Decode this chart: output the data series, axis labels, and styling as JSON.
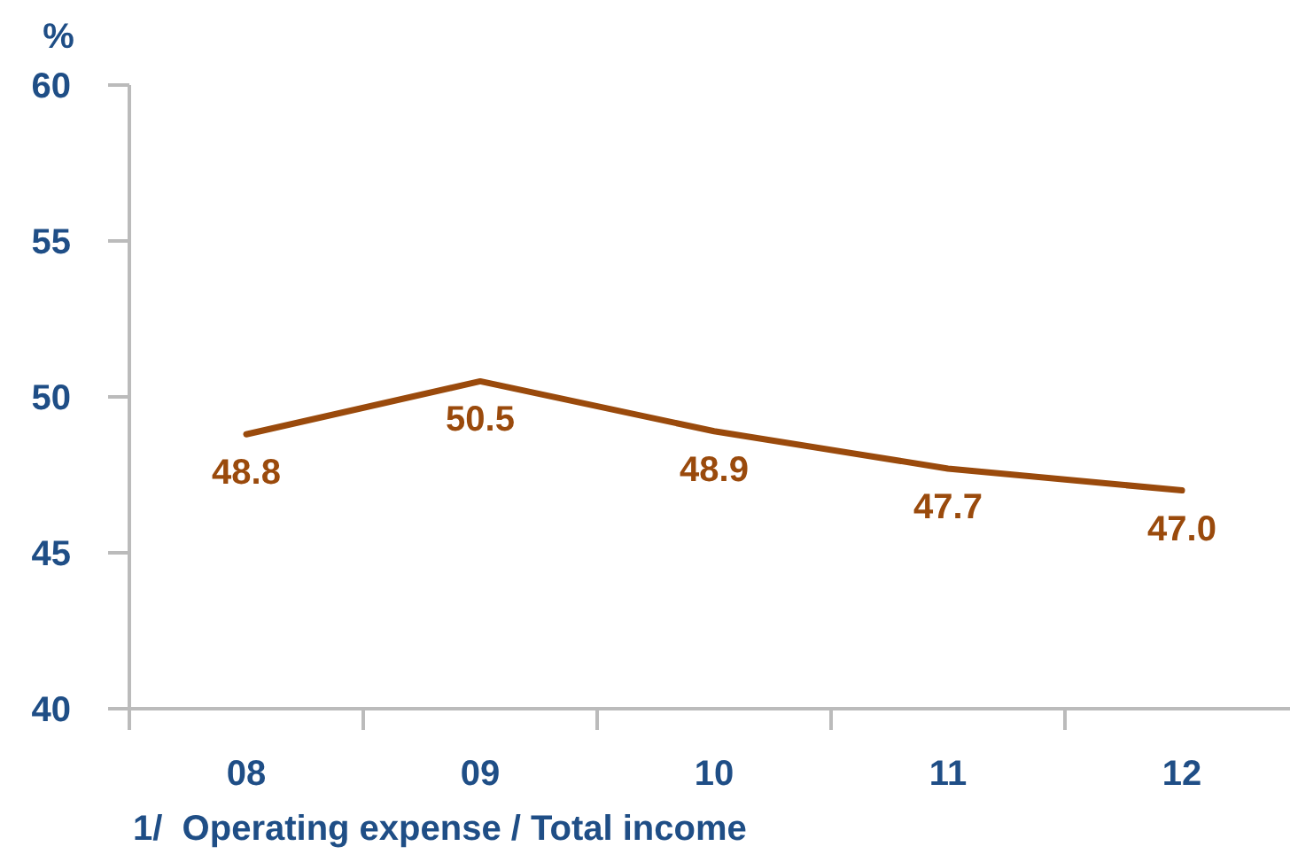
{
  "chart_data": {
    "type": "line",
    "ylabel": "%",
    "categories": [
      "08",
      "09",
      "10",
      "11",
      "12"
    ],
    "series": [
      {
        "color": "#9a4a0c",
        "values": [
          48.8,
          50.5,
          48.9,
          47.7,
          47.0
        ],
        "value_labels": [
          "48.8",
          "50.5",
          "48.9",
          "47.7",
          "47.0"
        ]
      }
    ],
    "ylim": [
      40,
      60
    ],
    "yticks": [
      40,
      45,
      50,
      55,
      60
    ],
    "grid": false,
    "marker": "none",
    "line_style": "solid",
    "annotations": [
      "1/  Operating expense / Total income"
    ]
  }
}
